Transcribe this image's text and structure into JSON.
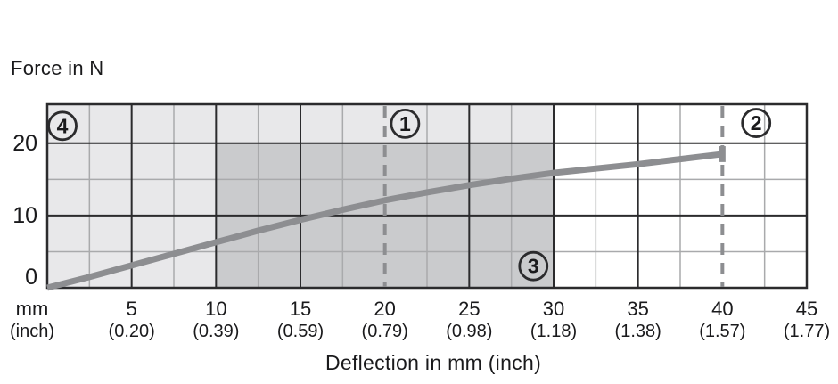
{
  "chart": {
    "y_axis_title": "Force in N",
    "x_axis_title": "Deflection in mm (inch)"
  },
  "colors": {
    "background": "#ffffff",
    "text": "#1a1a1c",
    "grid_major": "#2b2b2d",
    "grid_minor": "#a9aaac",
    "curve": "#8d8e91",
    "dashed_line": "#8d8e91",
    "marker_stroke": "#2b2b2d",
    "region_light": "#e8e8ea",
    "region_dark": "#cacbcd"
  },
  "chart_data": {
    "type": "line",
    "title": "Force in N",
    "xlabel": "Deflection in mm (inch)",
    "ylabel": "Force in N",
    "xlim": [
      0,
      45
    ],
    "ylim": [
      0,
      25.4
    ],
    "grid": {
      "x_major": [
        5,
        10,
        15,
        25,
        30,
        35
      ],
      "x_minor": [
        2.5,
        7.5,
        12.5,
        17.5,
        22.5,
        27.5,
        32.5,
        37.5,
        42.5
      ],
      "y_major": [
        10,
        20
      ],
      "y_minor": [
        5,
        15
      ]
    },
    "x_unit_label": {
      "line1": "mm",
      "line2": "(inch)"
    },
    "x_ticks": [
      {
        "value": 5,
        "mm": "5",
        "inch": "(0.20)"
      },
      {
        "value": 10,
        "mm": "10",
        "inch": "(0.39)"
      },
      {
        "value": 15,
        "mm": "15",
        "inch": "(0.59)"
      },
      {
        "value": 20,
        "mm": "20",
        "inch": "(0.79)"
      },
      {
        "value": 25,
        "mm": "25",
        "inch": "(0.98)"
      },
      {
        "value": 30,
        "mm": "30",
        "inch": "(1.18)"
      },
      {
        "value": 35,
        "mm": "35",
        "inch": "(1.38)"
      },
      {
        "value": 40,
        "mm": "40",
        "inch": "(1.57)"
      },
      {
        "value": 45,
        "mm": "45",
        "inch": "(1.77)"
      }
    ],
    "y_ticks": [
      {
        "value": 0,
        "label": "0"
      },
      {
        "value": 10,
        "label": "10"
      },
      {
        "value": 20,
        "label": "20"
      }
    ],
    "dashed_reference_lines_x": [
      20,
      40
    ],
    "regions": [
      {
        "name": "region-light",
        "x": [
          0,
          30
        ],
        "y": [
          0,
          25.4
        ],
        "color": "#e8e8ea"
      },
      {
        "name": "region-dark",
        "x": [
          10,
          30
        ],
        "y": [
          0,
          20
        ],
        "color": "#cacbcd"
      }
    ],
    "series": [
      {
        "name": "force-vs-deflection",
        "color": "#8d8e91",
        "points": [
          [
            0,
            0
          ],
          [
            2.5,
            1.5
          ],
          [
            5,
            3.1
          ],
          [
            7.5,
            4.7
          ],
          [
            10,
            6.3
          ],
          [
            12.5,
            7.9
          ],
          [
            15,
            9.4
          ],
          [
            17.5,
            10.8
          ],
          [
            20,
            12.1
          ],
          [
            22.5,
            13.2
          ],
          [
            25,
            14.2
          ],
          [
            27.5,
            15.1
          ],
          [
            30,
            15.9
          ],
          [
            32.5,
            16.5
          ],
          [
            35,
            17.1
          ],
          [
            37.5,
            17.8
          ],
          [
            40,
            18.5
          ]
        ],
        "end_cap": {
          "x": 40,
          "y_from": 17.4,
          "y_to": 19.6
        }
      }
    ],
    "callout_markers": [
      {
        "label": "4",
        "x": 0.9,
        "y": 22.4
      },
      {
        "label": "1",
        "x": 21.2,
        "y": 22.7
      },
      {
        "label": "2",
        "x": 42.0,
        "y": 22.8
      },
      {
        "label": "3",
        "x": 28.8,
        "y": 3.0
      }
    ]
  }
}
